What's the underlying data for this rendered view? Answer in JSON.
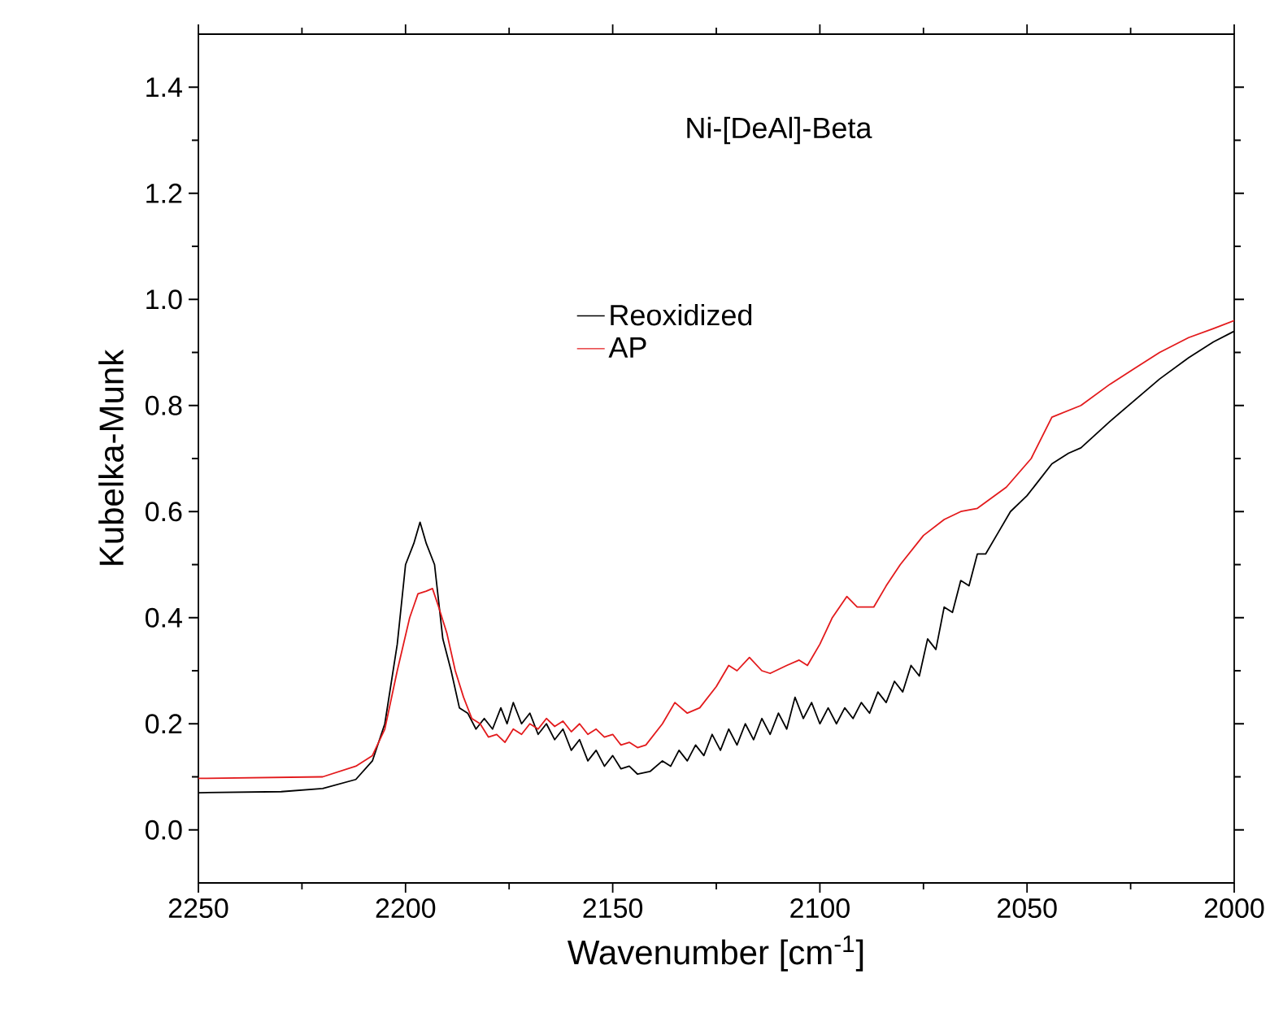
{
  "chart_data": {
    "type": "line",
    "title": "Ni-[DeAl]-Beta",
    "xlabel": "Wavenumber [cm$^{-1}$]",
    "ylabel": "Kubelka-Munk",
    "xlim": [
      2250,
      2000
    ],
    "ylim": [
      -0.1,
      1.5
    ],
    "xticks": [
      2250,
      2200,
      2150,
      2100,
      2050,
      2000
    ],
    "yticks": [
      {
        "value": 0,
        "label": "0.0"
      },
      {
        "value": 0.2,
        "label": "0.2"
      },
      {
        "value": 0.4,
        "label": "0.4"
      },
      {
        "value": 0.6,
        "label": "0.6"
      },
      {
        "value": 0.8,
        "label": "0.8"
      },
      {
        "value": 1.0,
        "label": "1.0"
      },
      {
        "value": 1.2,
        "label": "1.2"
      },
      {
        "value": 1.4,
        "label": "1.4"
      }
    ],
    "legend": "top",
    "grid": false,
    "marker": "none",
    "line_style": "solid",
    "series": [
      {
        "name": "Reoxidized",
        "color": "#000000",
        "x": [
          2250,
          2230,
          2220,
          2212,
          2208,
          2205,
          2202,
          2200,
          2198,
          2196.5,
          2195,
          2193,
          2191,
          2189,
          2187,
          2185,
          2183,
          2181,
          2179,
          2177,
          2175.5,
          2174,
          2172,
          2170,
          2168,
          2166,
          2164,
          2162,
          2160,
          2158,
          2156,
          2154,
          2152,
          2150,
          2148,
          2146,
          2144,
          2141,
          2138,
          2136,
          2134,
          2132,
          2130,
          2128,
          2126,
          2124,
          2122,
          2120,
          2118,
          2116,
          2114,
          2112,
          2110,
          2108,
          2106,
          2104,
          2102,
          2100,
          2098,
          2096,
          2094,
          2092,
          2090,
          2088,
          2086,
          2084,
          2082,
          2080,
          2078,
          2076,
          2074,
          2072,
          2070,
          2068,
          2066,
          2064,
          2062,
          2060,
          2057,
          2054,
          2050,
          2047,
          2044,
          2040,
          2037,
          2030,
          2024,
          2018,
          2011,
          2005,
          2000
        ],
        "values": [
          0.07,
          0.072,
          0.078,
          0.095,
          0.13,
          0.2,
          0.35,
          0.5,
          0.54,
          0.58,
          0.54,
          0.5,
          0.36,
          0.3,
          0.23,
          0.22,
          0.19,
          0.21,
          0.19,
          0.23,
          0.2,
          0.24,
          0.2,
          0.22,
          0.18,
          0.2,
          0.17,
          0.19,
          0.15,
          0.17,
          0.13,
          0.15,
          0.12,
          0.14,
          0.115,
          0.12,
          0.105,
          0.11,
          0.13,
          0.12,
          0.15,
          0.13,
          0.16,
          0.14,
          0.18,
          0.15,
          0.19,
          0.16,
          0.2,
          0.17,
          0.21,
          0.18,
          0.22,
          0.19,
          0.25,
          0.21,
          0.24,
          0.2,
          0.23,
          0.2,
          0.23,
          0.21,
          0.24,
          0.22,
          0.26,
          0.24,
          0.28,
          0.26,
          0.31,
          0.29,
          0.36,
          0.34,
          0.42,
          0.41,
          0.47,
          0.46,
          0.52,
          0.52,
          0.56,
          0.6,
          0.63,
          0.66,
          0.69,
          0.71,
          0.72,
          0.77,
          0.81,
          0.85,
          0.89,
          0.92,
          0.94
        ]
      },
      {
        "name": "AP",
        "color": "#e31a1c",
        "x": [
          2250,
          2220,
          2212,
          2208,
          2205,
          2202,
          2199,
          2197,
          2195,
          2193.5,
          2192,
          2190,
          2188,
          2186,
          2184,
          2182,
          2180,
          2178,
          2176,
          2174,
          2172,
          2170,
          2168,
          2166,
          2164,
          2162,
          2160,
          2158,
          2156,
          2154,
          2152,
          2150,
          2148,
          2146,
          2144,
          2142,
          2138,
          2135,
          2132,
          2129,
          2125,
          2122,
          2120,
          2117,
          2114,
          2112,
          2108,
          2105,
          2103,
          2100,
          2097,
          2093.5,
          2091,
          2087,
          2084,
          2080.6,
          2075,
          2070,
          2066,
          2062,
          2055,
          2049,
          2044,
          2037,
          2030,
          2024,
          2018,
          2011,
          2005,
          2000
        ],
        "values": [
          0.097,
          0.1,
          0.12,
          0.14,
          0.19,
          0.3,
          0.4,
          0.445,
          0.45,
          0.455,
          0.42,
          0.37,
          0.3,
          0.25,
          0.21,
          0.2,
          0.175,
          0.18,
          0.165,
          0.19,
          0.18,
          0.2,
          0.19,
          0.21,
          0.195,
          0.205,
          0.185,
          0.2,
          0.18,
          0.19,
          0.175,
          0.18,
          0.16,
          0.165,
          0.155,
          0.16,
          0.2,
          0.24,
          0.22,
          0.23,
          0.27,
          0.31,
          0.3,
          0.325,
          0.3,
          0.295,
          0.31,
          0.32,
          0.31,
          0.35,
          0.4,
          0.44,
          0.42,
          0.42,
          0.46,
          0.5,
          0.555,
          0.585,
          0.6,
          0.606,
          0.646,
          0.7,
          0.778,
          0.8,
          0.84,
          0.87,
          0.9,
          0.928,
          0.945,
          0.96
        ]
      }
    ]
  }
}
